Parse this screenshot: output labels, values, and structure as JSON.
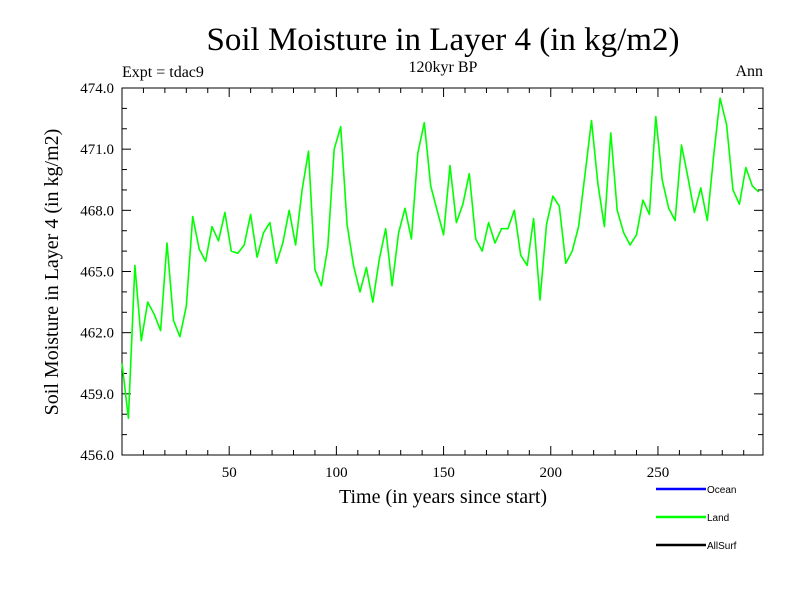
{
  "chart_data": {
    "type": "line",
    "title": "Soil Moisture in Layer 4 (in kg/m2)",
    "subtitle": "120kyr BP",
    "left_note": "Expt = tdac9",
    "right_note": "Ann",
    "xlabel": "Time (in years since start)",
    "ylabel": "Soil Moisture in Layer 4 (in kg/m2)",
    "xlim": [
      0,
      299
    ],
    "ylim": [
      456.0,
      474.0
    ],
    "x_ticks": [
      50,
      100,
      150,
      200,
      250
    ],
    "x_tick_labels": [
      "50",
      "100",
      "150",
      "200",
      "250"
    ],
    "y_ticks": [
      456,
      459,
      462,
      465,
      468,
      471,
      474
    ],
    "y_tick_labels": [
      "456.0",
      "459.0",
      "462.0",
      "465.0",
      "468.0",
      "471.0",
      "474.0"
    ],
    "legend": [
      {
        "name": "Ocean",
        "color": "#0000ff"
      },
      {
        "name": "Land",
        "color": "#00ff00"
      },
      {
        "name": "AllSurf",
        "color": "#000000"
      }
    ],
    "series": [
      {
        "name": "Land",
        "color": "#00ff00",
        "x_start": 0,
        "x_step": 3,
        "values": [
          460.5,
          457.8,
          465.3,
          461.6,
          463.5,
          462.9,
          462.1,
          466.4,
          462.6,
          461.8,
          463.3,
          467.7,
          466.1,
          465.5,
          467.2,
          466.5,
          467.9,
          466.0,
          465.9,
          466.3,
          467.8,
          465.7,
          466.9,
          467.4,
          465.4,
          466.4,
          468.0,
          466.3,
          469.0,
          470.9,
          465.1,
          464.3,
          466.2,
          471.0,
          472.1,
          467.3,
          465.3,
          464.0,
          465.2,
          463.5,
          465.6,
          467.1,
          464.3,
          466.9,
          468.1,
          466.6,
          470.8,
          472.3,
          469.2,
          468.0,
          466.8,
          470.2,
          467.4,
          468.3,
          469.8,
          466.6,
          466.0,
          467.4,
          466.4,
          467.1,
          467.1,
          468.0,
          465.8,
          465.3,
          467.6,
          463.6,
          467.3,
          468.7,
          468.2,
          465.4,
          466.0,
          467.2,
          469.8,
          472.4,
          469.3,
          467.2,
          471.8,
          468.0,
          466.9,
          466.3,
          466.8,
          468.5,
          467.8,
          472.6,
          469.5,
          468.1,
          467.5,
          471.2,
          469.6,
          467.9,
          469.1,
          467.5,
          470.7,
          473.5,
          472.2,
          469.0,
          468.3,
          470.1,
          469.2,
          468.9
        ]
      }
    ]
  }
}
